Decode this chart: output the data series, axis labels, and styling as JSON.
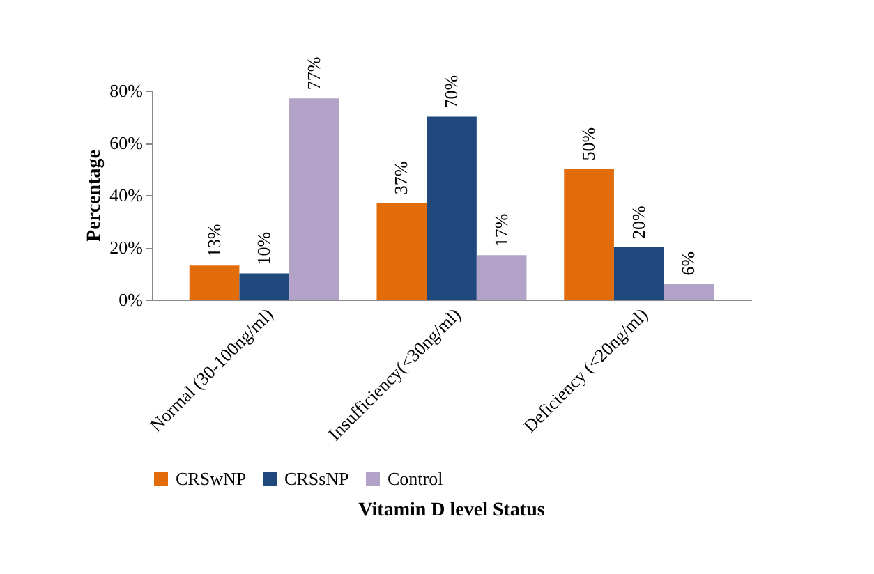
{
  "chart_data": {
    "type": "bar",
    "xlabel": "Vitamin D level Status",
    "ylabel": "Percentage",
    "categories": [
      "Normal (30-100ng/ml)",
      "Insufficiency(<30ng/ml)",
      "Deficiency (<20ng/ml)"
    ],
    "series": [
      {
        "name": "CRSwNP",
        "color": "#e36c0a",
        "values": [
          13,
          37,
          50
        ],
        "value_labels": [
          "13%",
          "37%",
          "50%"
        ]
      },
      {
        "name": "CRSsNP",
        "color": "#1f497d",
        "values": [
          10,
          70,
          20
        ],
        "value_labels": [
          "10%",
          "70%",
          "20%"
        ]
      },
      {
        "name": "Control",
        "color": "#b3a2c7",
        "values": [
          77,
          17,
          6
        ],
        "value_labels": [
          "77%",
          "17%",
          "6%"
        ]
      }
    ],
    "ylim": [
      0,
      80
    ],
    "yticks": [
      {
        "value": 0,
        "label": "0%"
      },
      {
        "value": 20,
        "label": "20%"
      },
      {
        "value": 40,
        "label": "40%"
      },
      {
        "value": 60,
        "label": "60%"
      },
      {
        "value": 80,
        "label": "80%"
      }
    ],
    "grid": false,
    "legend": "bottom"
  }
}
